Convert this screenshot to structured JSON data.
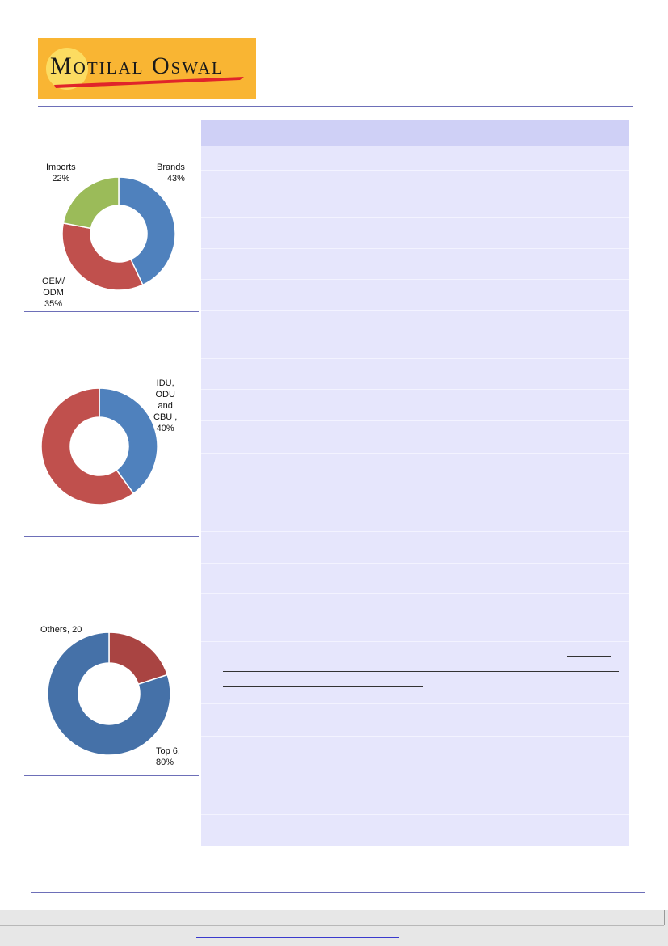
{
  "brand": {
    "logo_text": "Motilal Oswal"
  },
  "charts": [
    {
      "type": "pie",
      "labels": [
        "Brands\n43%",
        "OEM/\nODM\n35%",
        "Imports\n22%"
      ],
      "chart_data": {
        "type": "pie",
        "categories": [
          "Brands",
          "OEM/ODM",
          "Imports"
        ],
        "values": [
          43,
          35,
          22
        ],
        "colors": [
          "#4f81bd",
          "#c0504d",
          "#9bbb59"
        ]
      }
    },
    {
      "type": "pie",
      "labels": [
        "IDU,\nODU\nand\nCBU ,\n40%"
      ],
      "chart_data": {
        "type": "pie",
        "categories": [
          "IDU, ODU and CBU",
          ""
        ],
        "values": [
          40,
          60
        ],
        "colors": [
          "#4f81bd",
          "#c0504d"
        ]
      }
    },
    {
      "type": "pie",
      "labels": [
        "Others, 20",
        "Top 6,\n80%"
      ],
      "chart_data": {
        "type": "pie",
        "categories": [
          "Others",
          "Top 6"
        ],
        "values": [
          20,
          80
        ],
        "colors": [
          "#a94442",
          "#4571a8"
        ]
      }
    }
  ]
}
